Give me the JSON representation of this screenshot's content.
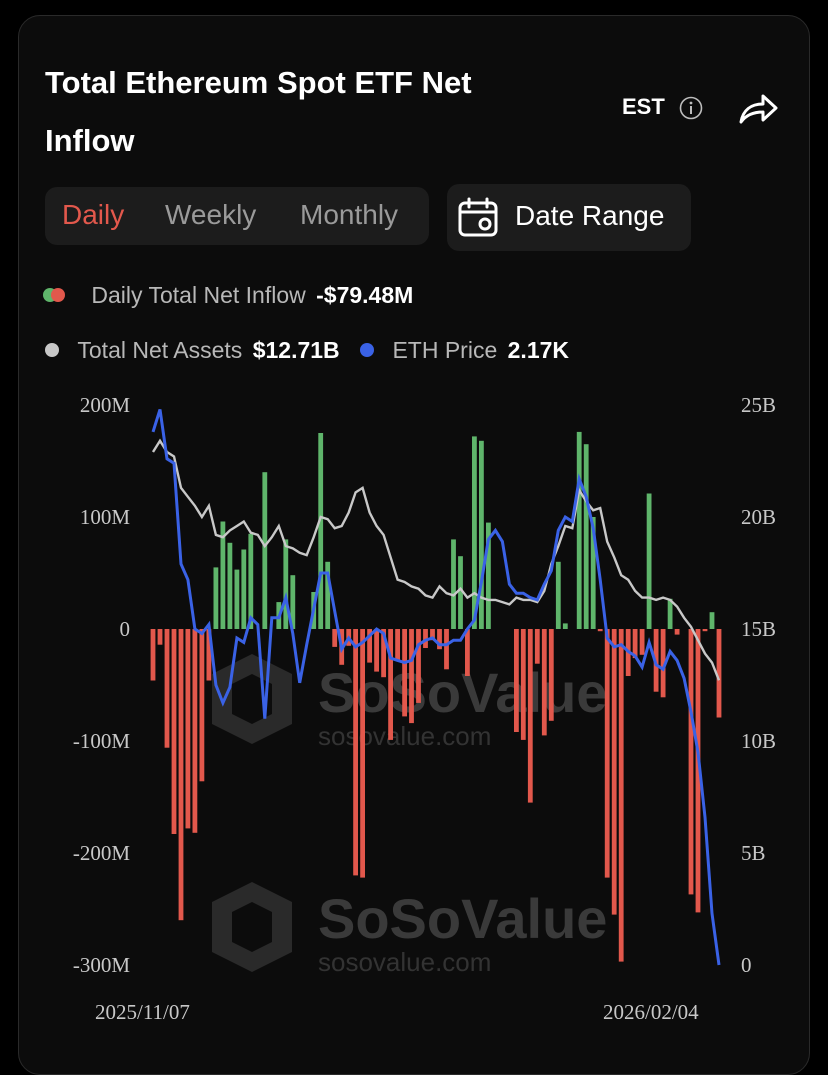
{
  "header": {
    "title": "Total Ethereum Spot ETF Net Inflow",
    "timezone": "EST"
  },
  "tabs": [
    {
      "label": "Daily",
      "active": true
    },
    {
      "label": "Weekly",
      "active": false
    },
    {
      "label": "Monthly",
      "active": false
    }
  ],
  "date_range_label": "Date Range",
  "legend": {
    "inflow_label": "Daily Total Net Inflow",
    "inflow_value": "-$79.48M",
    "assets_label": "Total Net Assets",
    "assets_value": "$12.71B",
    "price_label": "ETH Price",
    "price_value": "2.17K"
  },
  "watermark": {
    "brand": "SoSoValue",
    "domain": "sosovalue.com"
  },
  "colors": {
    "inflow_positive": "#5fb56b",
    "inflow_negative": "#e2584c",
    "assets_line": "#c8c8c8",
    "price_line": "#3a62e6"
  },
  "chart_data": {
    "type": "bar",
    "x_start_label": "2025/11/07",
    "x_end_label": "2026/02/04",
    "left_axis": {
      "ticks": [
        "200M",
        "100M",
        "0",
        "-100M",
        "-200M",
        "-300M"
      ],
      "range": [
        -300,
        200
      ],
      "unit": "M"
    },
    "right_axis": {
      "ticks": [
        "25B",
        "20B",
        "15B",
        "10B",
        "5B",
        "0"
      ],
      "range": [
        0,
        25
      ],
      "unit": "B"
    },
    "series": [
      {
        "name": "Daily Total Net Inflow",
        "kind": "bar",
        "axis": "left",
        "values": [
          -46,
          -14,
          -106,
          -183,
          -260,
          -178,
          -182,
          -136,
          -46,
          55,
          96,
          77,
          53,
          71,
          85,
          0,
          140,
          0,
          24,
          80,
          48,
          0,
          0,
          33,
          175,
          60,
          -16,
          -32,
          -15,
          -220,
          -222,
          -30,
          -38,
          -43,
          -99,
          -28,
          -78,
          -84,
          -66,
          -17,
          -10,
          -18,
          -36,
          80,
          65,
          -42,
          172,
          168,
          95,
          0,
          0,
          0,
          -92,
          -99,
          -155,
          -31,
          -95,
          -82,
          60,
          5,
          0,
          176,
          165,
          100,
          -2,
          -222,
          -255,
          -297,
          -42,
          -26,
          -23,
          121,
          -56,
          -61,
          27,
          -5,
          0,
          -237,
          -253,
          -2,
          15,
          -79
        ]
      },
      {
        "name": "Total Net Assets",
        "kind": "line",
        "axis": "right",
        "values": [
          22.9,
          23.4,
          22.9,
          22.7,
          21.3,
          20.9,
          20.5,
          20,
          20.5,
          19.2,
          19.1,
          19.4,
          19.6,
          19.8,
          19.3,
          19.2,
          18.7,
          19.1,
          19.6,
          18.7,
          18.6,
          18.4,
          18.3,
          19.1,
          20.0,
          19.9,
          19.5,
          19.6,
          20.2,
          21.1,
          21.3,
          20.2,
          19.6,
          19.2,
          18.2,
          17.2,
          17.1,
          16.9,
          16.8,
          16.5,
          16.4,
          16.9,
          16.6,
          16.5,
          16.8,
          16.4,
          16.6,
          16.4,
          16.3,
          16.3,
          16.2,
          16.1,
          16.4,
          16.3,
          16.3,
          16.2,
          16.7,
          17.9,
          18.7,
          19.6,
          19.5,
          21.2,
          20.7,
          20.3,
          20.4,
          18.9,
          18.2,
          17.4,
          17.2,
          16.7,
          16.4,
          16.4,
          16.3,
          16.4,
          16.3,
          16.0,
          15.5,
          15.1,
          14.5,
          13.9,
          13.5,
          12.71
        ]
      },
      {
        "name": "ETH Price",
        "kind": "line",
        "axis": "right",
        "values": [
          23.8,
          24.8,
          22.6,
          22.4,
          17.9,
          17.2,
          15.0,
          14.8,
          15.2,
          12.5,
          11.7,
          12.4,
          14.6,
          14.4,
          15.5,
          15.2,
          11.0,
          15.5,
          15.5,
          16.4,
          14.8,
          12.6,
          14.3,
          15.9,
          17.5,
          17.5,
          15.8,
          14.1,
          14.6,
          14.2,
          14.4,
          14.7,
          15.0,
          14.8,
          13.7,
          13.6,
          13.5,
          13.6,
          14.3,
          14.5,
          14.6,
          14.3,
          14.3,
          14.5,
          14.5,
          15.0,
          15.4,
          17.1,
          19.0,
          19.4,
          18.9,
          17.0,
          16.6,
          16.6,
          16.4,
          16.3,
          17.0,
          17.6,
          19.4,
          20.0,
          19.8,
          21.7,
          20.9,
          19.5,
          17.2,
          14.6,
          14.2,
          14.3,
          14.0,
          13.8,
          13.3,
          14.4,
          13.4,
          13.2,
          14.0,
          13.6,
          12.8,
          11.3,
          9.5,
          6.6,
          2.3,
          0
        ]
      }
    ],
    "grid": false,
    "legend_position": "top"
  }
}
